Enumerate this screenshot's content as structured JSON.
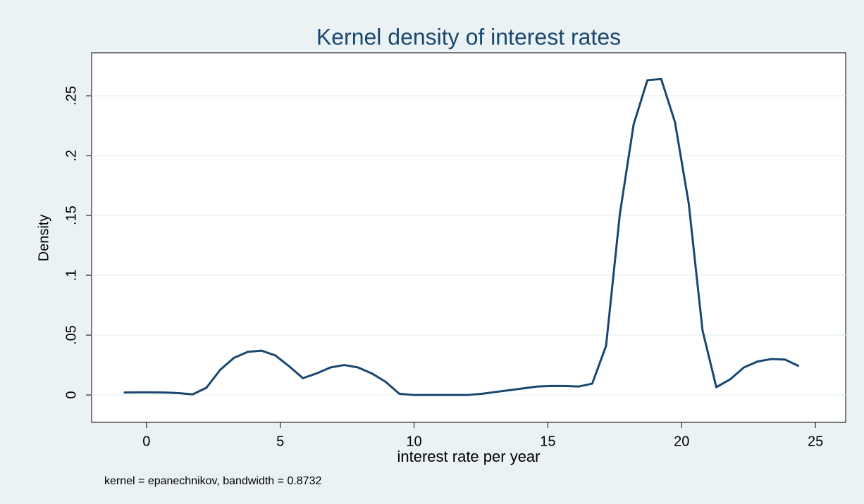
{
  "chart_data": {
    "type": "line",
    "title": "Kernel density of interest rates",
    "x_label": "interest rate per year",
    "y_label": "Density",
    "note": "kernel = epanechnikov, bandwidth = 0.8732",
    "x": [
      -0.85,
      -0.335,
      0.18,
      0.695,
      1.21,
      1.725,
      2.24,
      2.755,
      3.27,
      3.785,
      4.3,
      4.815,
      5.33,
      5.845,
      6.36,
      6.875,
      7.39,
      7.905,
      8.42,
      8.935,
      9.45,
      9.965,
      10.48,
      10.995,
      11.51,
      12.025,
      12.54,
      13.055,
      13.57,
      14.085,
      14.6,
      15.115,
      15.63,
      16.145,
      16.66,
      17.175,
      17.69,
      18.205,
      18.72,
      19.235,
      19.75,
      20.265,
      20.78,
      21.295,
      21.81,
      22.325,
      22.84,
      23.355,
      23.87,
      24.385
    ],
    "series": [
      {
        "color": "#1a476f",
        "values": [
          0.002,
          0.0022,
          0.0022,
          0.002,
          0.0015,
          0.0005,
          0.006,
          0.021,
          0.031,
          0.036,
          0.037,
          0.033,
          0.024,
          0.014,
          0.018,
          0.023,
          0.025,
          0.023,
          0.018,
          0.011,
          0.001,
          0,
          0,
          0,
          0,
          0,
          0.001,
          0.0025,
          0.004,
          0.0055,
          0.007,
          0.0075,
          0.0075,
          0.007,
          0.0095,
          0.041,
          0.151,
          0.226,
          0.263,
          0.264,
          0.228,
          0.16,
          0.054,
          0.0065,
          0.013,
          0.023,
          0.028,
          0.03,
          0.0295,
          0.024
        ]
      }
    ],
    "xlim": [
      -2.05,
      26.13
    ],
    "ylim": [
      -0.0229,
      0.2859
    ],
    "xticks": [
      0,
      5,
      10,
      15,
      20,
      25
    ],
    "yticks": [
      0,
      {
        "value": 0.05,
        "label": ".05"
      },
      {
        "value": 0.1,
        "label": ".1"
      },
      {
        "value": 0.15,
        "label": ".15"
      },
      {
        "value": 0.2,
        "label": ".2"
      },
      {
        "value": 0.25,
        "label": ".25"
      }
    ],
    "grid": true
  }
}
